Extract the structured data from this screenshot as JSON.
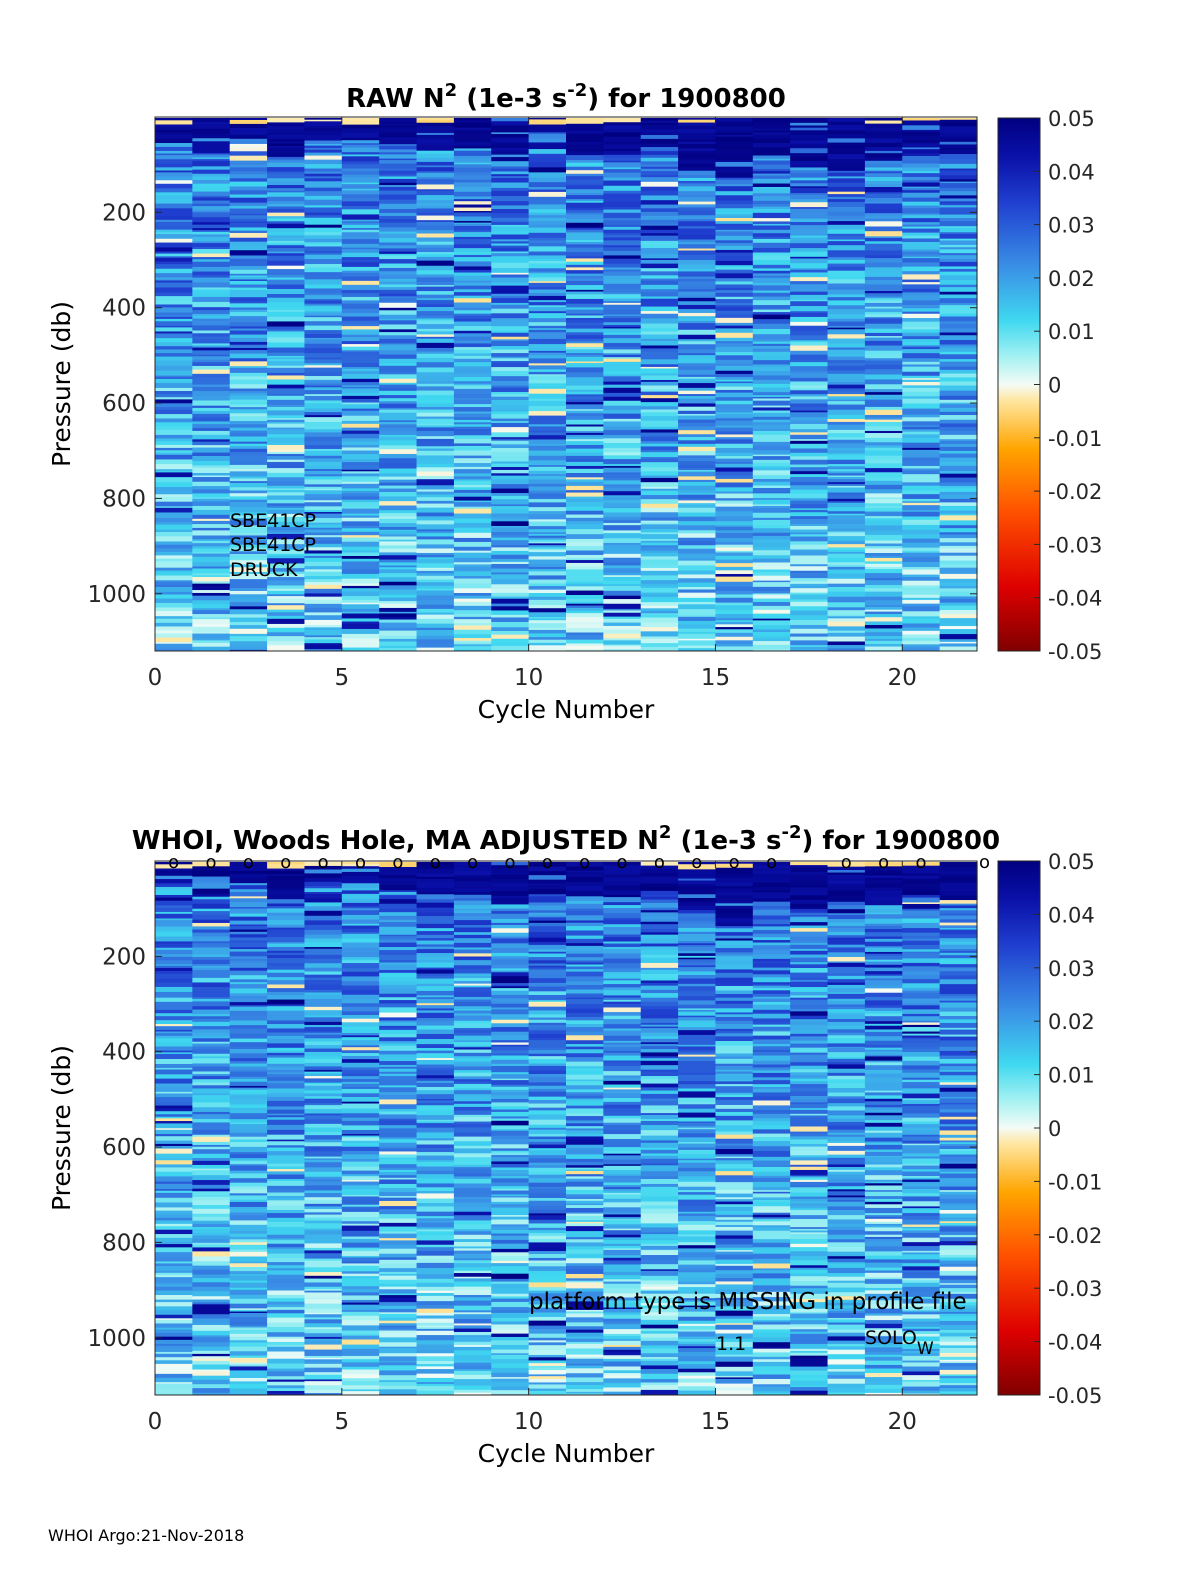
{
  "chart_data": [
    {
      "type": "heatmap",
      "title_main": "RAW N",
      "title_sup1": "2",
      "title_mid": " (1e-3 s",
      "title_sup2": "-2",
      "title_end": ") for 1900800",
      "xlabel": "Cycle Number",
      "ylabel": "Pressure (db)",
      "x_ticks": [
        0,
        5,
        10,
        15,
        20
      ],
      "y_ticks": [
        200,
        400,
        600,
        800,
        1000
      ],
      "xlim": [
        0,
        22
      ],
      "ylim": [
        1120,
        0
      ],
      "colorbar_ticks": [
        "0.05",
        "0.04",
        "0.03",
        "0.02",
        "0.01",
        "0",
        "-0.01",
        "-0.02",
        "-0.03",
        "-0.04",
        "-0.05"
      ],
      "clim": [
        -0.05,
        0.05
      ],
      "n_cycles": 22,
      "annotations": [
        {
          "text": "SBE41CP"
        },
        {
          "text": "SBE41CP"
        },
        {
          "text": "DRUCK"
        }
      ],
      "surface_layer_depth_by_cycle": [
        40,
        70,
        45,
        80,
        40,
        45,
        55,
        70,
        65,
        90,
        60,
        70,
        75,
        60,
        100,
        120,
        80,
        100,
        110,
        90,
        70,
        75
      ],
      "seed": 17
    },
    {
      "type": "heatmap",
      "title_main": "WHOI, Woods Hole, MA  ADJUSTED N",
      "title_sup1": "2",
      "title_mid": " (1e-3 s",
      "title_sup2": "-2",
      "title_end": ") for 1900800",
      "xlabel": "Cycle Number",
      "ylabel": "Pressure (db)",
      "x_ticks": [
        0,
        5,
        10,
        15,
        20
      ],
      "y_ticks": [
        200,
        400,
        600,
        800,
        1000
      ],
      "xlim": [
        0,
        22
      ],
      "ylim": [
        1120,
        0
      ],
      "colorbar_ticks": [
        "0.05",
        "0.04",
        "0.03",
        "0.02",
        "0.01",
        "0",
        "-0.01",
        "-0.02",
        "-0.03",
        "-0.04",
        "-0.05"
      ],
      "clim": [
        -0.05,
        0.05
      ],
      "n_cycles": 22,
      "qc_marker": "o",
      "qc_marker_cycles": [
        0.5,
        1.5,
        2.5,
        3.5,
        4.5,
        5.5,
        6.5,
        7.5,
        8.5,
        9.5,
        10.5,
        11.5,
        12.5,
        13.5,
        14.5,
        15.5,
        16.5,
        18.5,
        19.5,
        20.5,
        22.2
      ],
      "annotations": [
        {
          "text": "platform type is MISSING in profile file"
        },
        {
          "text": "1.1"
        },
        {
          "text": "SOLO",
          "subscript": "W"
        }
      ],
      "surface_layer_depth_by_cycle": [
        40,
        70,
        45,
        80,
        40,
        45,
        55,
        70,
        65,
        90,
        60,
        70,
        75,
        60,
        100,
        120,
        80,
        100,
        110,
        90,
        70,
        75
      ],
      "seed": 29
    }
  ],
  "footer": "WHOI Argo:21-Nov-2018"
}
